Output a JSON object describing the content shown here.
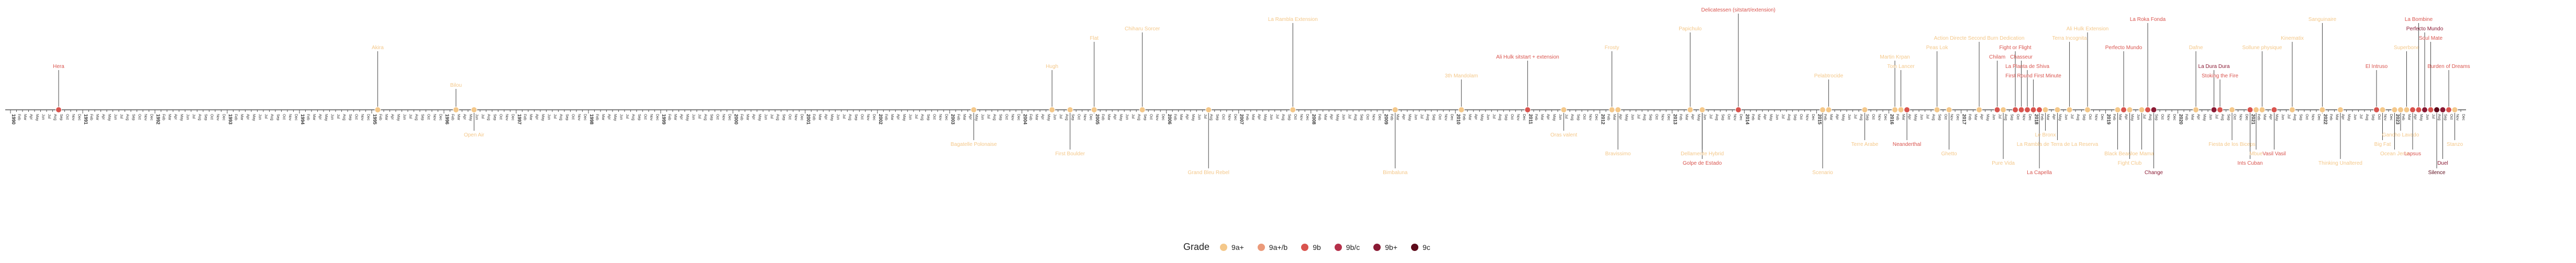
{
  "chart_data": {
    "type": "scatter",
    "subtype": "timeline",
    "x_range": [
      "1990-01",
      "2023-12"
    ],
    "legend": {
      "title": "Grade",
      "placement": "bottom",
      "items": [
        {
          "label": "9a+",
          "color": "#f4c88a"
        },
        {
          "label": "9a+/b",
          "color": "#eb9a7a"
        },
        {
          "label": "9b",
          "color": "#d9544e"
        },
        {
          "label": "9b/c",
          "color": "#b5304a"
        },
        {
          "label": "9b+",
          "color": "#8a1a34"
        },
        {
          "label": "9c",
          "color": "#5c0a1a"
        }
      ]
    },
    "events": [
      {
        "label": "Hera",
        "date": "1990-09",
        "grade": "9b",
        "side": "above",
        "level": 3
      },
      {
        "label": "Open Air",
        "date": "1996-06",
        "grade": "9a+",
        "side": "below",
        "level": 1
      },
      {
        "label": "Bilou",
        "date": "1996-03",
        "grade": "9a+",
        "side": "above",
        "level": 1
      },
      {
        "label": "Akira",
        "date": "1995-02",
        "grade": "9a+",
        "side": "above",
        "level": 5
      },
      {
        "label": "Bagatelle Polonaise",
        "date": "2003-05",
        "grade": "9a+",
        "side": "below",
        "level": 2
      },
      {
        "label": "Hugh",
        "date": "2004-06",
        "grade": "9a+",
        "side": "above",
        "level": 3
      },
      {
        "label": "Flat",
        "date": "2005-01",
        "grade": "9a+",
        "side": "above",
        "level": 6
      },
      {
        "label": "Chiharu Sorcer",
        "date": "2005-09",
        "grade": "9a+",
        "side": "above",
        "level": 7
      },
      {
        "label": "First Boulder",
        "date": "2004-09",
        "grade": "9a+",
        "side": "below",
        "level": 3
      },
      {
        "label": "Grand Bleu Rebel",
        "date": "2006-08",
        "grade": "9a+",
        "side": "below",
        "level": 5
      },
      {
        "label": "La Rambla Extension",
        "date": "2007-10",
        "grade": "9a+",
        "side": "above",
        "level": 8
      },
      {
        "label": "Bimbaluna",
        "date": "2009-03",
        "grade": "9a+",
        "side": "below",
        "level": 5
      },
      {
        "label": "3th Mandolam",
        "date": "2010-02",
        "grade": "9a+",
        "side": "above",
        "level": 2
      },
      {
        "label": "Ali Hulk sitstart + extension",
        "date": "2011-01",
        "grade": "9b",
        "side": "above",
        "level": 4
      },
      {
        "label": "Oras valent",
        "date": "2011-07",
        "grade": "9a+",
        "side": "below",
        "level": 1
      },
      {
        "label": "Frosty",
        "date": "2012-03",
        "grade": "9a+",
        "side": "above",
        "level": 5
      },
      {
        "label": "Bravissimo",
        "date": "2012-04",
        "grade": "9a+",
        "side": "below",
        "level": 3
      },
      {
        "label": "Papichulo",
        "date": "2013-04",
        "grade": "9a+",
        "side": "above",
        "level": 7
      },
      {
        "label": "Golpe de Estado",
        "date": "2013-06",
        "grade": "9b",
        "side": "below",
        "level": 4
      },
      {
        "label": "Dellamente Hybrid",
        "date": "2013-06",
        "grade": "9a+",
        "side": "below",
        "level": 3
      },
      {
        "label": "Delicatessen (sitstart/extension)",
        "date": "2013-12",
        "grade": "9b",
        "side": "above",
        "level": 9
      },
      {
        "label": "Scenario",
        "date": "2015-02",
        "grade": "9a+",
        "side": "below",
        "level": 5
      },
      {
        "label": "Pelabtrocide",
        "date": "2015-03",
        "grade": "9a+",
        "side": "above",
        "level": 2
      },
      {
        "label": "Terre Arabe",
        "date": "2015-09",
        "grade": "9a+",
        "side": "below",
        "level": 2
      },
      {
        "label": "Martin Krpan",
        "date": "2016-02",
        "grade": "9a+",
        "side": "above",
        "level": 4
      },
      {
        "label": "Tom Lancer",
        "date": "2016-03",
        "grade": "9a+",
        "side": "above",
        "level": 3
      },
      {
        "label": "Neanderthal",
        "date": "2016-04",
        "grade": "9b",
        "side": "below",
        "level": 2
      },
      {
        "label": "Peas Lok",
        "date": "2016-09",
        "grade": "9a+",
        "side": "above",
        "level": 5
      },
      {
        "label": "Ghetto",
        "date": "2016-11",
        "grade": "9a+",
        "side": "below",
        "level": 3
      },
      {
        "label": "Action Directe Second Burn Dedication",
        "date": "2017-04",
        "grade": "9a+",
        "side": "above",
        "level": 6
      },
      {
        "label": "Chilam",
        "date": "2017-07",
        "grade": "9b",
        "side": "above",
        "level": 4
      },
      {
        "label": "Pure Vida",
        "date": "2017-08",
        "grade": "9a+",
        "side": "below",
        "level": 4
      },
      {
        "label": "Fight or Flight",
        "date": "2017-10",
        "grade": "9b",
        "side": "above",
        "level": 5
      },
      {
        "label": "Chasseur",
        "date": "2017-11",
        "grade": "9b",
        "side": "above",
        "level": 4
      },
      {
        "label": "La Planta de Shiva",
        "date": "2017-12",
        "grade": "9b",
        "side": "above",
        "level": 3
      },
      {
        "label": "First Round First Minute",
        "date": "2018-01",
        "grade": "9b",
        "side": "above",
        "level": 2
      },
      {
        "label": "La Capella",
        "date": "2018-02",
        "grade": "9b",
        "side": "below",
        "level": 5
      },
      {
        "label": "Le Bronx",
        "date": "2018-03",
        "grade": "9a+",
        "side": "below",
        "level": 1
      },
      {
        "label": "La Rambla de Terra de La Reserva",
        "date": "2018-05",
        "grade": "9a+",
        "side": "below",
        "level": 2
      },
      {
        "label": "Terra Incognita",
        "date": "2018-07",
        "grade": "9a+",
        "side": "above",
        "level": 6
      },
      {
        "label": "Ali Hulk Extension",
        "date": "2018-10",
        "grade": "9a+",
        "side": "above",
        "level": 7
      },
      {
        "label": "Black Bean",
        "date": "2019-03",
        "grade": "9a+",
        "side": "below",
        "level": 3
      },
      {
        "label": "Perfecto Mundo",
        "date": "2019-04",
        "grade": "9b",
        "side": "above",
        "level": 5
      },
      {
        "label": "Fight Club",
        "date": "2019-05",
        "grade": "9a+",
        "side": "below",
        "level": 4
      },
      {
        "label": "Joe Mama",
        "date": "2019-07",
        "grade": "9a+",
        "side": "below",
        "level": 3
      },
      {
        "label": "La Roka Fonda",
        "date": "2019-08",
        "grade": "9b",
        "side": "above",
        "level": 8
      },
      {
        "label": "Change",
        "date": "2019-09",
        "grade": "9b+",
        "side": "below",
        "level": 5
      },
      {
        "label": "Dafne",
        "date": "2020-04",
        "grade": "9a+",
        "side": "above",
        "level": 5
      },
      {
        "label": "La Dura Dura",
        "date": "2020-07",
        "grade": "9b+",
        "side": "above",
        "level": 3
      },
      {
        "label": "Stoking the Fire",
        "date": "2020-08",
        "grade": "9b",
        "side": "above",
        "level": 2
      },
      {
        "label": "Fiesta de los Biceps",
        "date": "2020-10",
        "grade": "9a+",
        "side": "below",
        "level": 2
      },
      {
        "label": "Ints Cuban",
        "date": "2021-01",
        "grade": "9b",
        "side": "below",
        "level": 4
      },
      {
        "label": "Mbue",
        "date": "2021-02",
        "grade": "9a+",
        "side": "below",
        "level": 3
      },
      {
        "label": "Sollune physique",
        "date": "2021-03",
        "grade": "9a+",
        "side": "above",
        "level": 5
      },
      {
        "label": "Vasil Vasil",
        "date": "2021-05",
        "grade": "9b",
        "side": "below",
        "level": 3
      },
      {
        "label": "Kinematix",
        "date": "2021-08",
        "grade": "9a+",
        "side": "above",
        "level": 6
      },
      {
        "label": "Sanguinaire",
        "date": "2022-01",
        "grade": "9a+",
        "side": "above",
        "level": 8
      },
      {
        "label": "Thinking Unaltered",
        "date": "2022-04",
        "grade": "9a+",
        "side": "below",
        "level": 4
      },
      {
        "label": "El Intruso",
        "date": "2022-10",
        "grade": "9b",
        "side": "above",
        "level": 3
      },
      {
        "label": "Big Fat",
        "date": "2022-11",
        "grade": "9a+",
        "side": "below",
        "level": 2
      },
      {
        "label": "Ocean Jerre",
        "date": "2023-01",
        "grade": "9a+",
        "side": "below",
        "level": 3
      },
      {
        "label": "Gancho Lavado",
        "date": "2023-02",
        "grade": "9a+",
        "side": "below",
        "level": 1
      },
      {
        "label": "Superbone",
        "date": "2023-03",
        "grade": "9a+",
        "side": "above",
        "level": 5
      },
      {
        "label": "Lapsus",
        "date": "2023-04",
        "grade": "9b",
        "side": "below",
        "level": 3
      },
      {
        "label": "La Bombine",
        "date": "2023-05",
        "grade": "9b",
        "side": "above",
        "level": 8
      },
      {
        "label": "Perfecto Mundo",
        "date": "2023-06",
        "grade": "9b+",
        "side": "above",
        "level": 7
      },
      {
        "label": "Soul Mate",
        "date": "2023-07",
        "grade": "9b",
        "side": "above",
        "level": 6
      },
      {
        "label": "Silence",
        "date": "2023-08",
        "grade": "9c",
        "side": "below",
        "level": 5
      },
      {
        "label": "Duel",
        "date": "2023-09",
        "grade": "9b+",
        "side": "below",
        "level": 4
      },
      {
        "label": "Burden of Dreams",
        "date": "2023-10",
        "grade": "9b",
        "side": "above",
        "level": 3
      },
      {
        "label": "Stanzo",
        "date": "2023-11",
        "grade": "9a+",
        "side": "below",
        "level": 2
      }
    ]
  }
}
